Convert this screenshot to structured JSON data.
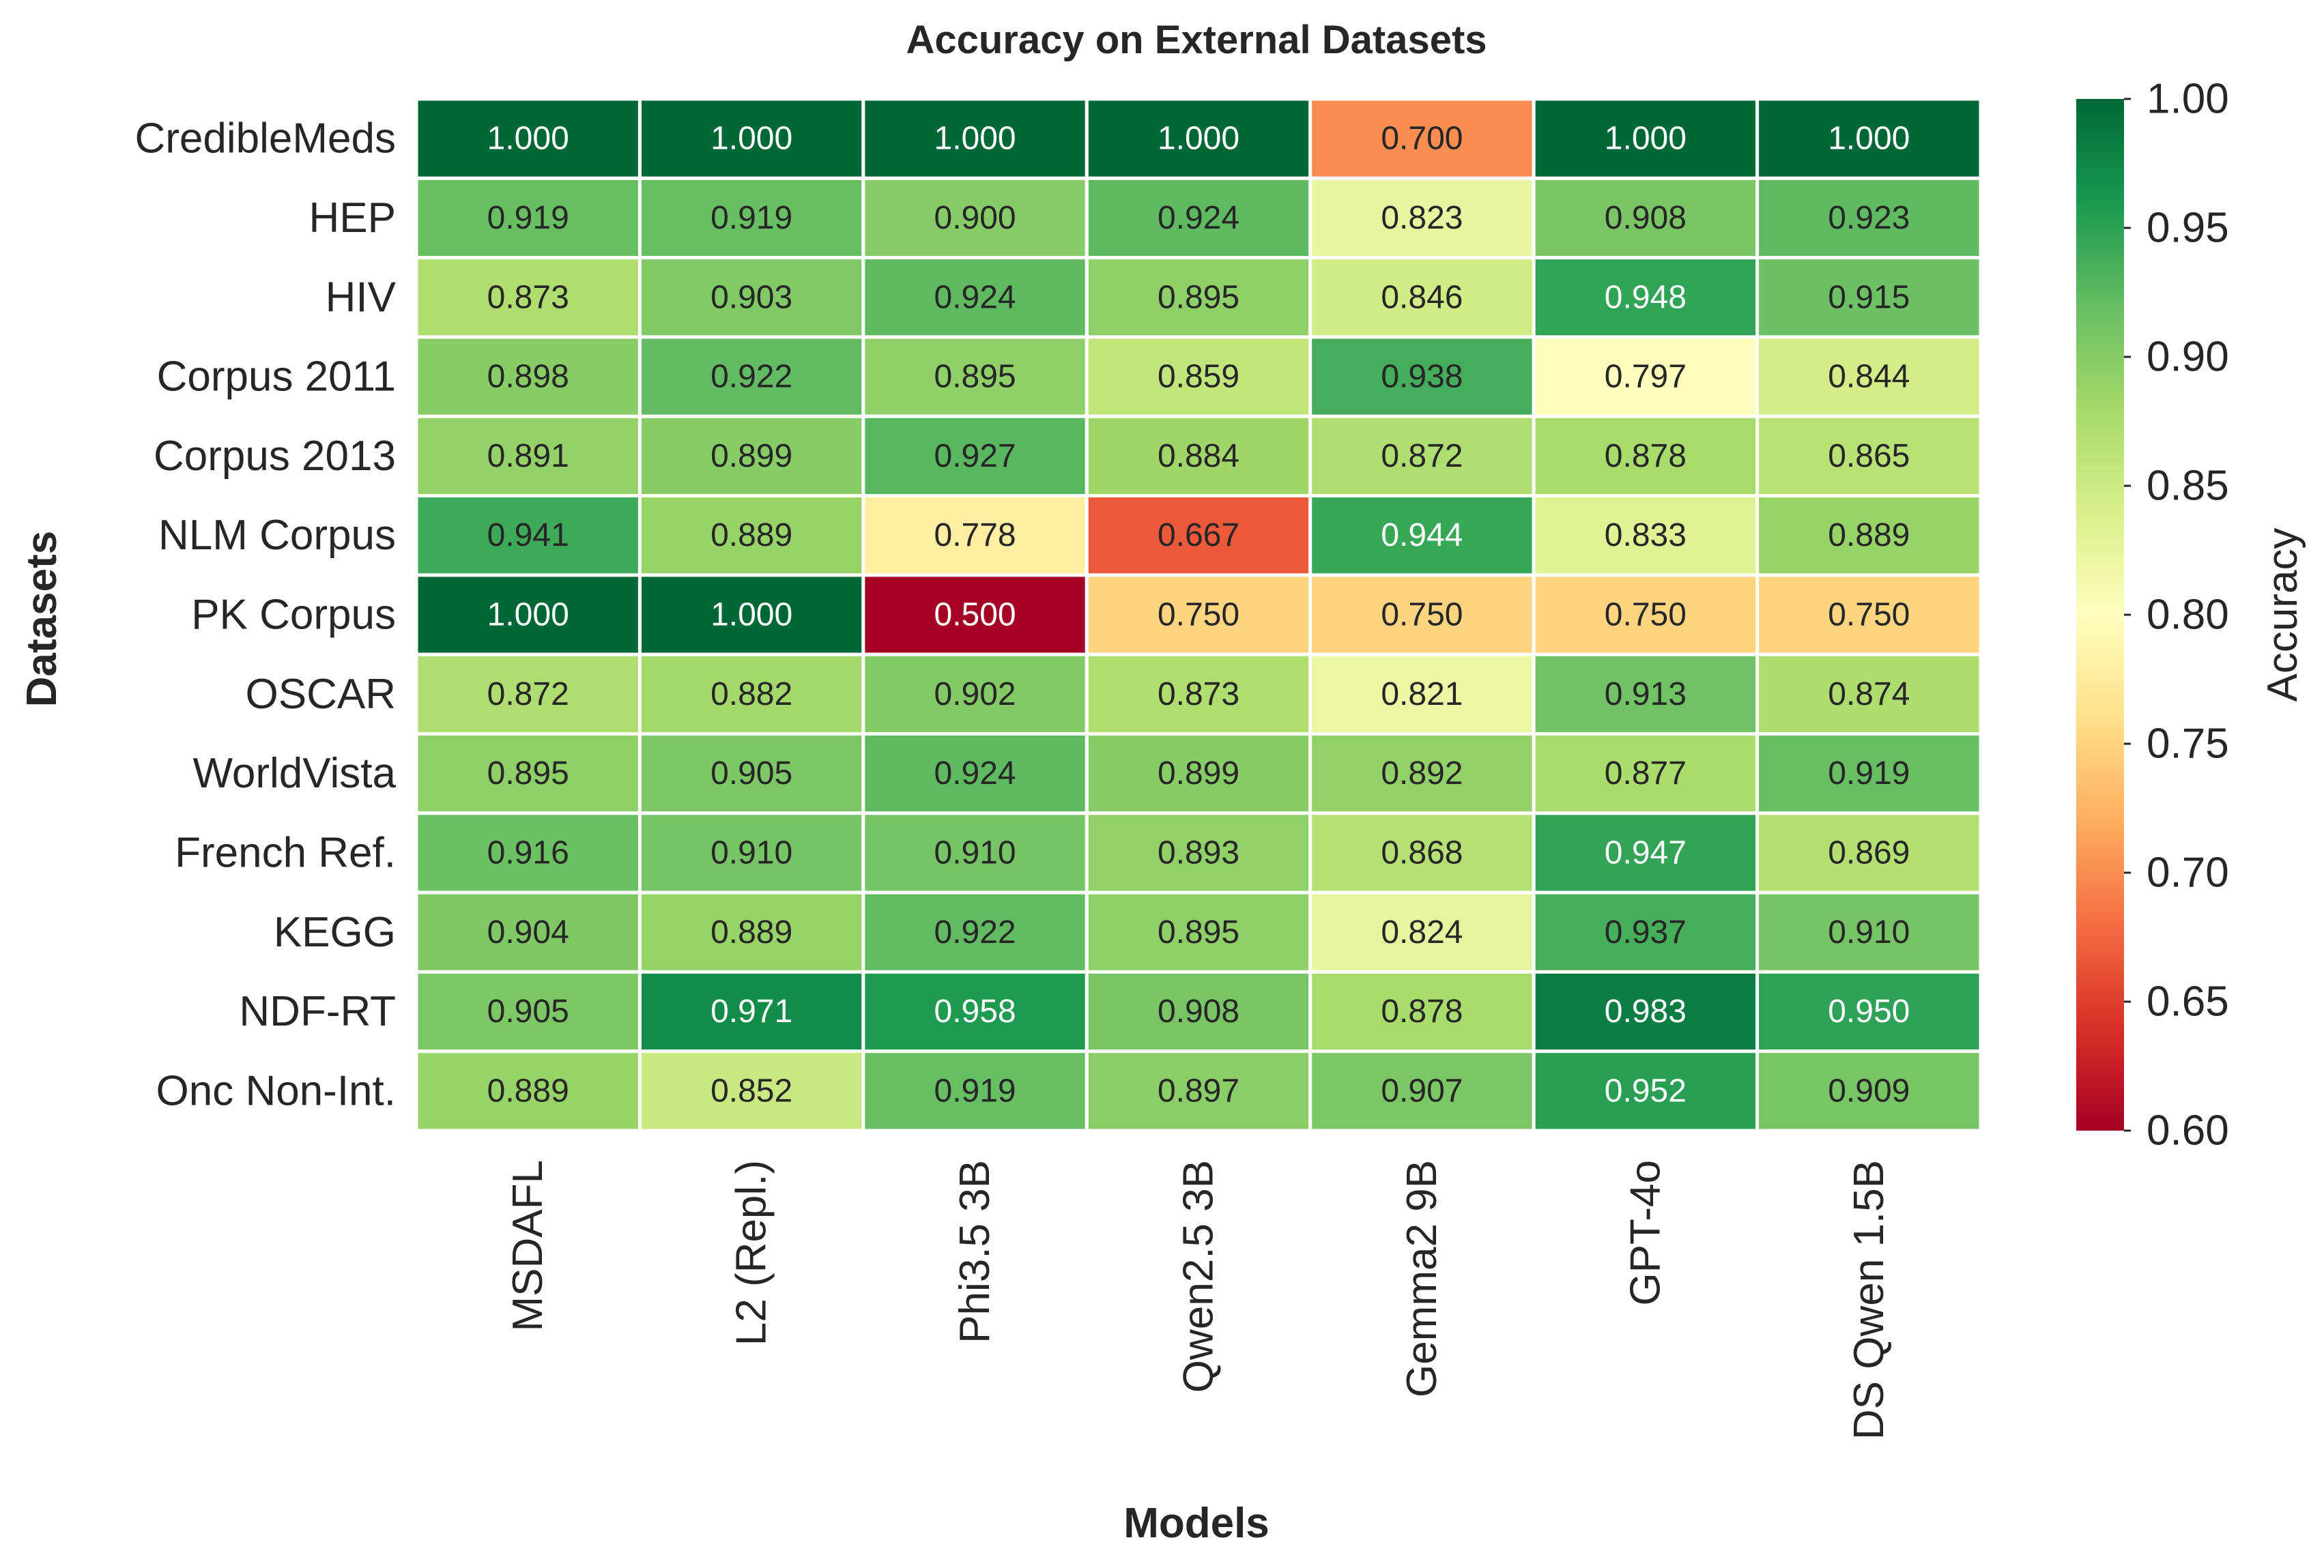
{
  "chart_data": {
    "type": "heatmap",
    "title": "Accuracy on External Datasets",
    "xlabel": "Models",
    "ylabel": "Datasets",
    "colorbar_label": "Accuracy",
    "colormap": "RdYlGn",
    "vmin": 0.6,
    "vmax": 1.0,
    "colorbar_ticks": [
      "0.60",
      "0.65",
      "0.70",
      "0.75",
      "0.80",
      "0.85",
      "0.90",
      "0.95",
      "1.00"
    ],
    "models": [
      "MSDAFL",
      "L2 (Repl.)",
      "Phi3.5 3B",
      "Qwen2.5 3B",
      "Gemma2 9B",
      "GPT-4o",
      "DS Qwen 1.5B"
    ],
    "datasets": [
      "CredibleMeds",
      "HEP",
      "HIV",
      "Corpus 2011",
      "Corpus 2013",
      "NLM Corpus",
      "PK Corpus",
      "OSCAR",
      "WorldVista",
      "French Ref.",
      "KEGG",
      "NDF-RT",
      "Onc Non-Int."
    ],
    "values": [
      [
        1.0,
        1.0,
        1.0,
        1.0,
        0.7,
        1.0,
        1.0
      ],
      [
        0.919,
        0.919,
        0.9,
        0.924,
        0.823,
        0.908,
        0.923
      ],
      [
        0.873,
        0.903,
        0.924,
        0.895,
        0.846,
        0.948,
        0.915
      ],
      [
        0.898,
        0.922,
        0.895,
        0.859,
        0.938,
        0.797,
        0.844
      ],
      [
        0.891,
        0.899,
        0.927,
        0.884,
        0.872,
        0.878,
        0.865
      ],
      [
        0.941,
        0.889,
        0.778,
        0.667,
        0.944,
        0.833,
        0.889
      ],
      [
        1.0,
        1.0,
        0.5,
        0.75,
        0.75,
        0.75,
        0.75
      ],
      [
        0.872,
        0.882,
        0.902,
        0.873,
        0.821,
        0.913,
        0.874
      ],
      [
        0.895,
        0.905,
        0.924,
        0.899,
        0.892,
        0.877,
        0.919
      ],
      [
        0.916,
        0.91,
        0.91,
        0.893,
        0.868,
        0.947,
        0.869
      ],
      [
        0.904,
        0.889,
        0.922,
        0.895,
        0.824,
        0.937,
        0.91
      ],
      [
        0.905,
        0.971,
        0.958,
        0.908,
        0.878,
        0.983,
        0.95
      ],
      [
        0.889,
        0.852,
        0.919,
        0.897,
        0.907,
        0.952,
        0.909
      ]
    ]
  }
}
